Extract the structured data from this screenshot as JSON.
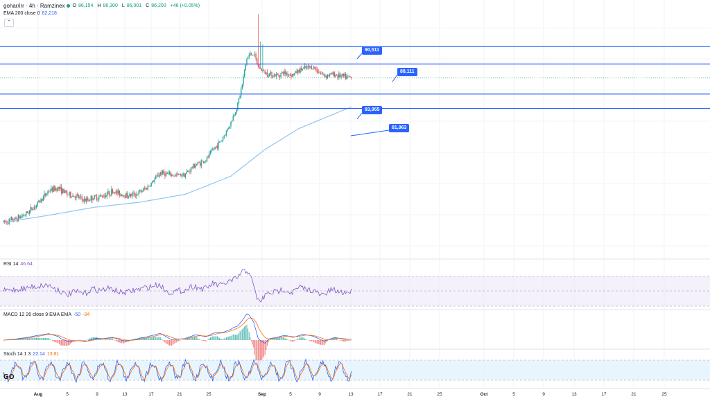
{
  "header": {
    "symbol_title": "gohar/irr · 4h · Ramzinex",
    "ohlc": {
      "o_label": "O",
      "o": "86,154",
      "h_label": "H",
      "h": "86,300",
      "l_label": "L",
      "l": "86,001",
      "c_label": "C",
      "c": "86,200",
      "change": "+46 (+0.05%)"
    },
    "ema_label": "EMA 200 close 0",
    "ema_value": "82,218",
    "collapse_glyph": "⌃"
  },
  "indicators": {
    "rsi": {
      "label": "RSI 14",
      "value": "46.64"
    },
    "macd": {
      "label": "MACD 12 26 close 9 EMA EMA",
      "v1": "-50",
      "v2": "-94"
    },
    "stoch": {
      "label": "Stoch 14 1 3",
      "v1": "22.14",
      "v2": "13.81"
    }
  },
  "logo_text": "GO",
  "colors": {
    "up": "#26a69a",
    "down": "#ef5350",
    "ema": "#90c4f0",
    "level": "#2962ff",
    "rsi": "#7e57c2",
    "macd": "#2962ff",
    "signal": "#ff6d00",
    "stoch_k": "#2962ff",
    "stoch_d": "#ff6d00",
    "grid": "#f0f3fa"
  },
  "chart_data": {
    "type": "candlestick",
    "price_levels": [
      {
        "label": "90,511",
        "value": 90511
      },
      {
        "label": "88,111",
        "value": 88111
      },
      {
        "label": "83,955",
        "value": 83955
      },
      {
        "label": "81,963",
        "value": 81963
      }
    ],
    "last_price": 86200,
    "x_ticks": [
      "Aug",
      "5",
      "9",
      "13",
      "17",
      "21",
      "25",
      "Sep",
      "5",
      "9",
      "13",
      "17",
      "21",
      "25",
      "Oct",
      "5",
      "9",
      "13",
      "17",
      "21",
      "25"
    ],
    "price_path": [
      [
        0,
        66250
      ],
      [
        10,
        66600
      ],
      [
        20,
        67400
      ],
      [
        30,
        68800
      ],
      [
        40,
        70600
      ],
      [
        48,
        71000
      ],
      [
        56,
        70100
      ],
      [
        64,
        69800
      ],
      [
        72,
        69200
      ],
      [
        78,
        69600
      ],
      [
        86,
        69800
      ],
      [
        96,
        70500
      ],
      [
        104,
        70100
      ],
      [
        110,
        69900
      ],
      [
        118,
        70200
      ],
      [
        126,
        71000
      ],
      [
        130,
        71600
      ],
      [
        138,
        73100
      ],
      [
        146,
        72800
      ],
      [
        152,
        72700
      ],
      [
        160,
        72900
      ],
      [
        168,
        74100
      ],
      [
        178,
        74800
      ],
      [
        184,
        76200
      ],
      [
        192,
        77600
      ],
      [
        200,
        80000
      ],
      [
        206,
        82500
      ],
      [
        210,
        85300
      ],
      [
        214,
        88900
      ],
      [
        216,
        89300
      ],
      [
        220,
        89600
      ],
      [
        224,
        87700
      ],
      [
        230,
        86900
      ],
      [
        240,
        86500
      ],
      [
        246,
        86900
      ],
      [
        254,
        86600
      ],
      [
        262,
        87400
      ],
      [
        272,
        87700
      ],
      [
        282,
        86500
      ],
      [
        290,
        86700
      ],
      [
        300,
        86300
      ],
      [
        306,
        86200
      ]
    ],
    "ema_path": [
      [
        0,
        66200
      ],
      [
        40,
        67200
      ],
      [
        80,
        68300
      ],
      [
        120,
        69000
      ],
      [
        160,
        70100
      ],
      [
        200,
        72600
      ],
      [
        230,
        76300
      ],
      [
        260,
        79200
      ],
      [
        300,
        81800
      ],
      [
        306,
        82218
      ]
    ]
  }
}
